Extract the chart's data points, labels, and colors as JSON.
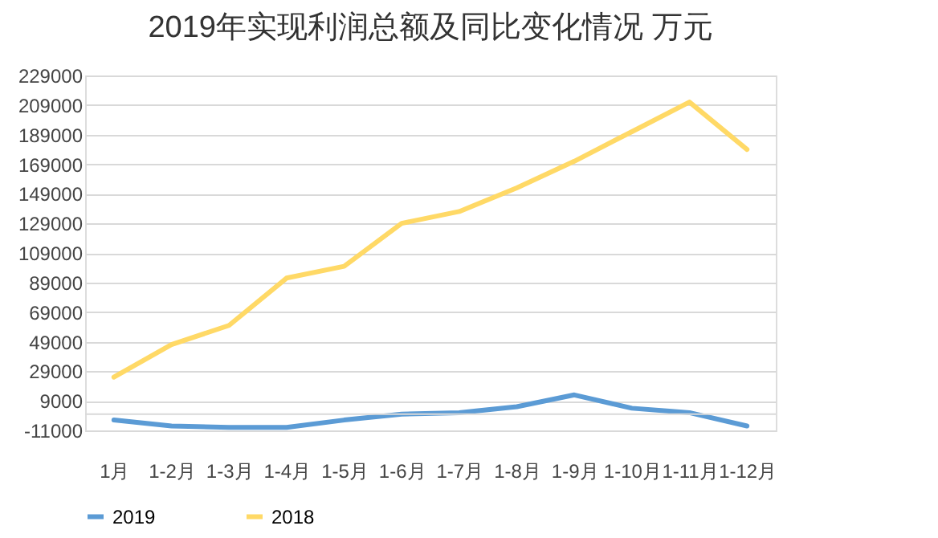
{
  "chart_data": {
    "type": "line",
    "title": "2019年实现利润总额及同比变化情况 万元",
    "categories": [
      "1月",
      "1-2月",
      "1-3月",
      "1-4月",
      "1-5月",
      "1-6月",
      "1-7月",
      "1-8月",
      "1-9月",
      "1-10月",
      "1-11月",
      "1-12月"
    ],
    "series": [
      {
        "name": "2019",
        "color": "#5b9bd5",
        "values": [
          -4000,
          -8000,
          -9000,
          -9000,
          -4000,
          0,
          1000,
          5000,
          13000,
          4000,
          1000,
          -8000
        ]
      },
      {
        "name": "2018",
        "color": "#ffd966",
        "values": [
          25000,
          47000,
          60000,
          92000,
          100000,
          129000,
          137000,
          153000,
          171000,
          191000,
          211000,
          179000
        ]
      }
    ],
    "ylim": [
      -11000,
      229000
    ],
    "yticks": [
      -11000,
      9000,
      29000,
      49000,
      69000,
      89000,
      109000,
      129000,
      149000,
      169000,
      189000,
      209000,
      229000
    ],
    "grid": "y",
    "legend": "bottom",
    "marker": "none",
    "line_style": "solid"
  }
}
